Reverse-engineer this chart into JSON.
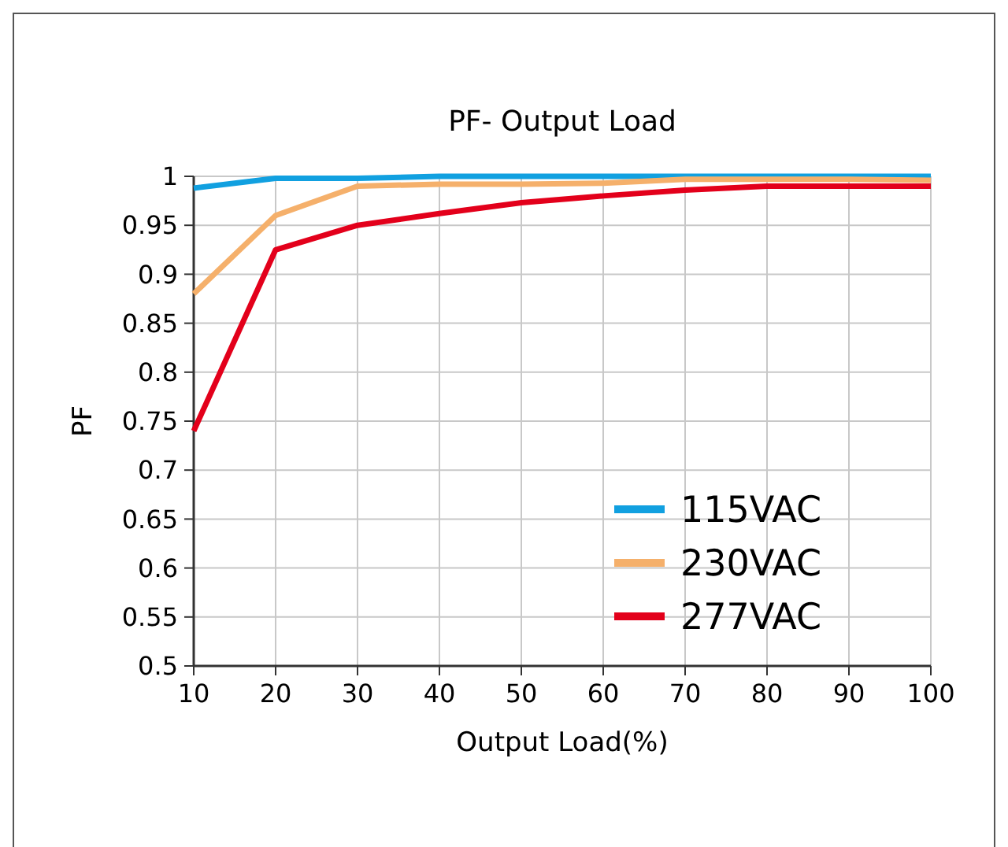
{
  "chart_data": {
    "type": "line",
    "title": "PF- Output Load",
    "xlabel": "Output Load(%)",
    "ylabel": "PF",
    "x": [
      10,
      20,
      30,
      40,
      50,
      60,
      70,
      80,
      90,
      100
    ],
    "series": [
      {
        "name": "115VAC",
        "color": "#11a0e0",
        "values": [
          0.988,
          0.998,
          0.998,
          1.0,
          1.0,
          1.0,
          1.0,
          1.0,
          1.0,
          1.0
        ]
      },
      {
        "name": "230VAC",
        "color": "#f5b06b",
        "values": [
          0.88,
          0.96,
          0.99,
          0.992,
          0.992,
          0.993,
          0.997,
          0.997,
          0.997,
          0.996
        ]
      },
      {
        "name": "277VAC",
        "color": "#e3001b",
        "values": [
          0.74,
          0.925,
          0.95,
          0.962,
          0.973,
          0.98,
          0.986,
          0.99,
          0.99,
          0.99
        ]
      }
    ],
    "xlim": [
      10,
      100
    ],
    "xticks": [
      10,
      20,
      30,
      40,
      50,
      60,
      70,
      80,
      90,
      100
    ],
    "ylim": [
      0.5,
      1
    ],
    "yticks": [
      0.5,
      0.55,
      0.6,
      0.65,
      0.7,
      0.75,
      0.8,
      0.85,
      0.9,
      0.95,
      1
    ],
    "grid": true,
    "legend": "bottom right",
    "marker": "none",
    "line_style": "solid"
  }
}
